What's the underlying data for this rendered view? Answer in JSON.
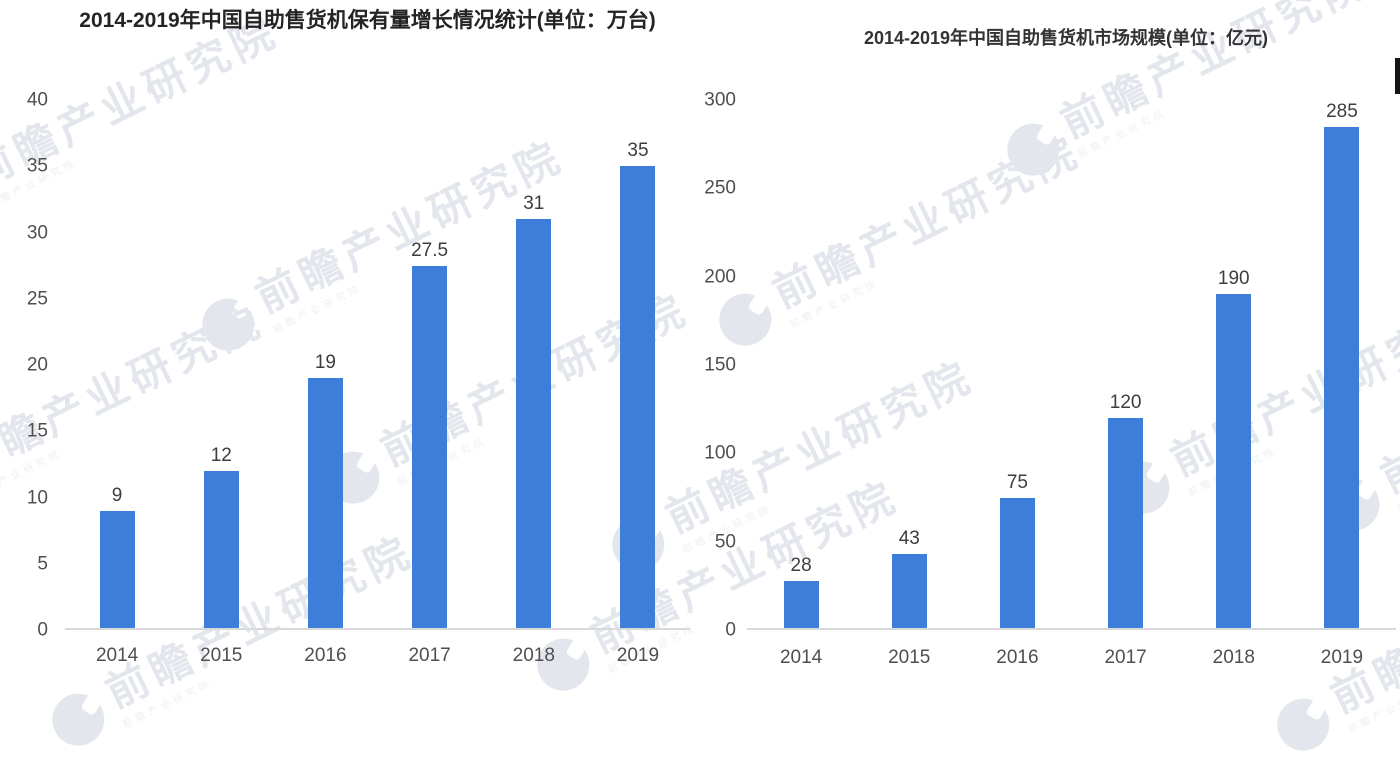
{
  "page": {
    "background": "#ffffff",
    "accent_blue": "#3d7edb",
    "axis_line_color": "#d9d9d9",
    "watermark": {
      "text": "前瞻产业研究院",
      "logo": "qianzhan-logo"
    }
  },
  "chart_data": [
    {
      "type": "bar",
      "title": "2014-2019年中国自助售货机保有量增长情况统计(单位：万台)",
      "unit": "万台",
      "categories": [
        "2014",
        "2015",
        "2016",
        "2017",
        "2018",
        "2019"
      ],
      "values": [
        9,
        12,
        19,
        27.5,
        31,
        35
      ],
      "value_labels": [
        "9",
        "12",
        "19",
        "27.5",
        "31",
        "35"
      ],
      "ylim": [
        0,
        40
      ],
      "yticks": [
        0,
        5,
        10,
        15,
        20,
        25,
        30,
        35,
        40
      ],
      "bar_color": "#3d7edb",
      "grid": false,
      "legend": false,
      "xlabel": "",
      "ylabel": ""
    },
    {
      "type": "bar",
      "title": "2014-2019年中国自助售货机市场规模(单位：亿元)",
      "unit": "亿元",
      "categories": [
        "2014",
        "2015",
        "2016",
        "2017",
        "2018",
        "2019"
      ],
      "values": [
        28,
        43,
        75,
        120,
        190,
        285
      ],
      "value_labels": [
        "28",
        "43",
        "75",
        "120",
        "190",
        "285"
      ],
      "ylim": [
        0,
        300
      ],
      "yticks": [
        0,
        50,
        100,
        150,
        200,
        250,
        300
      ],
      "bar_color": "#3d7edb",
      "grid": false,
      "legend": false,
      "xlabel": "",
      "ylabel": ""
    }
  ]
}
